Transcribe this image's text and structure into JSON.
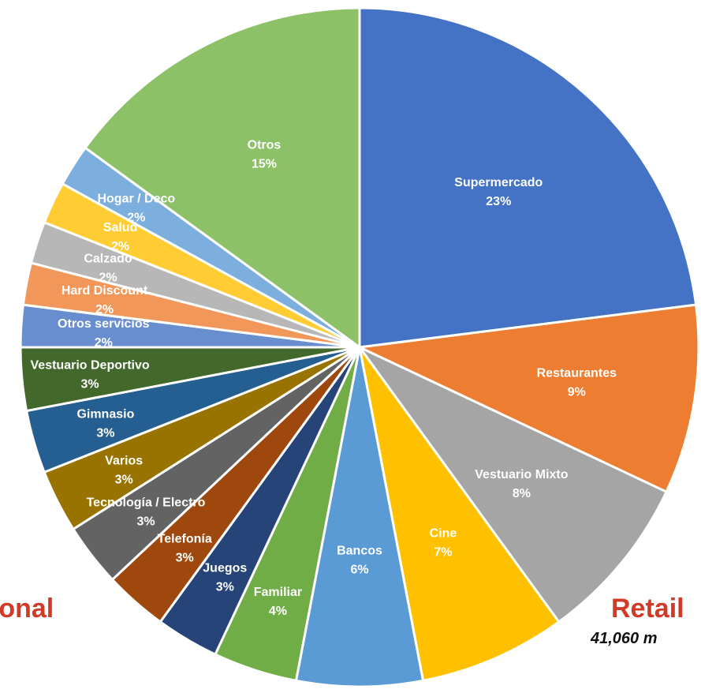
{
  "chart_data": {
    "type": "pie",
    "slices": [
      {
        "label": "Supermercado",
        "value": 23,
        "display": "23%",
        "color": "#4472c4"
      },
      {
        "label": "Restaurantes",
        "value": 9,
        "display": "9%",
        "color": "#ed7d31"
      },
      {
        "label": "Vestuario Mixto",
        "value": 8,
        "display": "8%",
        "color": "#a5a5a5"
      },
      {
        "label": "Cine",
        "value": 7,
        "display": "7%",
        "color": "#ffc000"
      },
      {
        "label": "Bancos",
        "value": 6,
        "display": "6%",
        "color": "#5b9bd5"
      },
      {
        "label": "Familiar",
        "value": 4,
        "display": "4%",
        "color": "#70ad47"
      },
      {
        "label": "Juegos",
        "value": 3,
        "display": "3%",
        "color": "#264478"
      },
      {
        "label": "Telefonía",
        "value": 3,
        "display": "3%",
        "color": "#9e480e"
      },
      {
        "label": "Tecnología / Electro",
        "value": 3,
        "display": "3%",
        "color": "#636363"
      },
      {
        "label": "Varios",
        "value": 3,
        "display": "3%",
        "color": "#997300"
      },
      {
        "label": "Gimnasio",
        "value": 3,
        "display": "3%",
        "color": "#255e91"
      },
      {
        "label": "Vestuario Deportivo",
        "value": 3,
        "display": "3%",
        "color": "#43682b"
      },
      {
        "label": "Otros servicios",
        "value": 2,
        "display": "2%",
        "color": "#698ed0"
      },
      {
        "label": "Hard Discount",
        "value": 2,
        "display": "2%",
        "color": "#f1975a"
      },
      {
        "label": "Calzado",
        "value": 2,
        "display": "2%",
        "color": "#b7b7b7"
      },
      {
        "label": "Salud",
        "value": 2,
        "display": "2%",
        "color": "#ffcd33"
      },
      {
        "label": "Hogar / Deco",
        "value": 2,
        "display": "2%",
        "color": "#7cafdd"
      },
      {
        "label": "Otros",
        "value": 15,
        "display": "15%",
        "color": "#8cc168"
      }
    ],
    "start_angle": "12 o'clock",
    "direction": "clockwise",
    "legend": "none"
  },
  "side_labels": {
    "left_title": "cional",
    "right_title": "Retail",
    "right_subtitle": "41,060 m"
  },
  "colors": {
    "side_title": "#d13a26",
    "slice_border": "#ffffff"
  }
}
